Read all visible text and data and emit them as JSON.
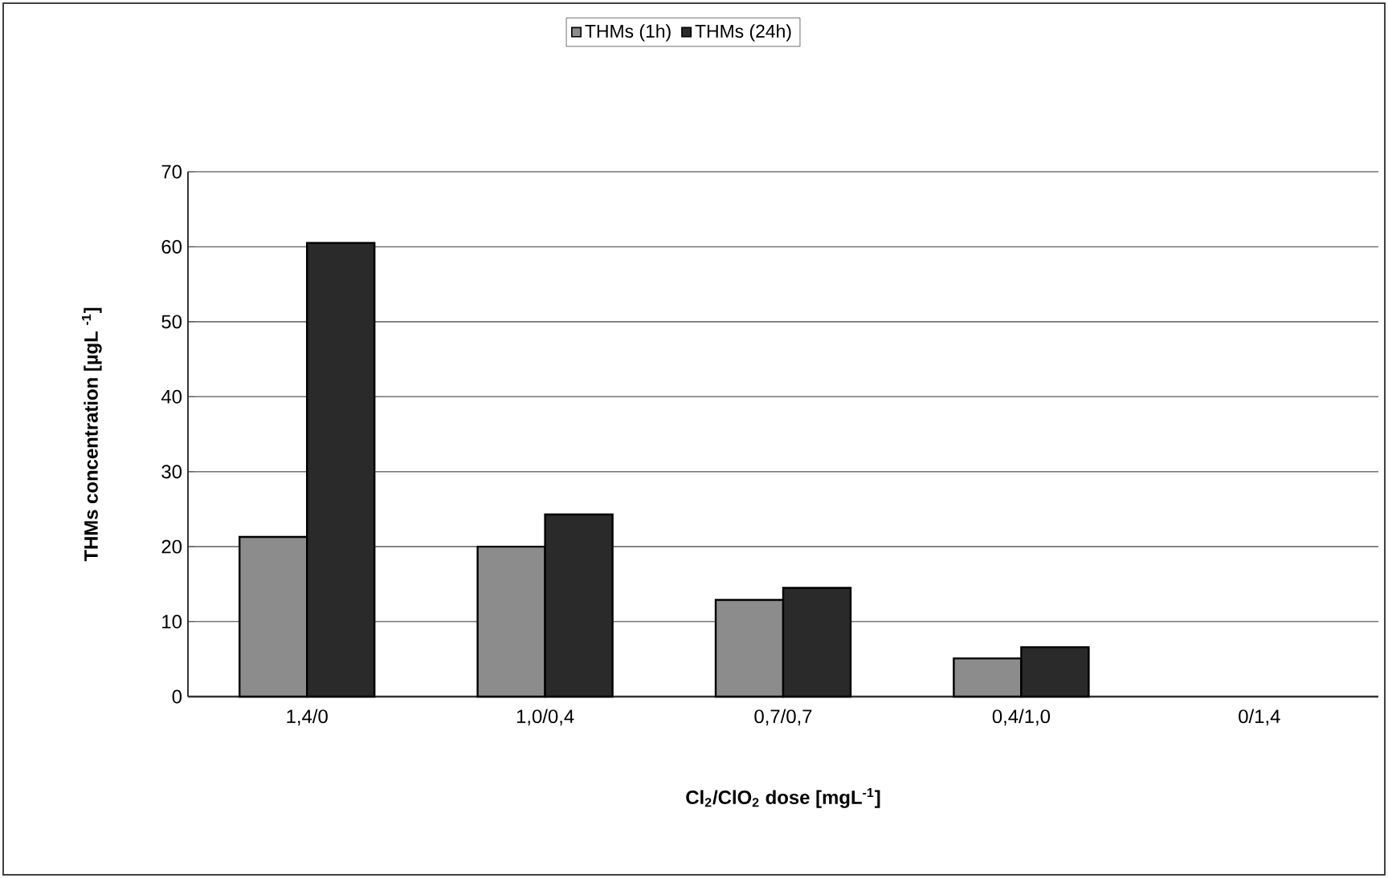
{
  "chart_data": {
    "type": "bar",
    "xlabel": "Cl$_{2}$/ClO$_{2}$ dose [mgL$^{-1}$]",
    "ylabel": "THMs concentration [µgL $^{-1}$]",
    "categories": [
      "1,4/0",
      "1,0/0,4",
      "0,7/0,7",
      "0,4/1,0",
      "0/1,4"
    ],
    "series": [
      {
        "name": "THMs (1h)",
        "color": "#8c8c8c",
        "values": [
          21.3,
          20.0,
          12.9,
          5.1,
          null
        ]
      },
      {
        "name": "THMs (24h)",
        "color": "#2a2a2a",
        "values": [
          60.5,
          24.3,
          14.5,
          6.6,
          null
        ]
      }
    ],
    "ylim": [
      0,
      70
    ],
    "yticks": [
      0,
      10,
      20,
      30,
      40,
      50,
      60,
      70
    ],
    "grid": "y",
    "legend": "top"
  }
}
